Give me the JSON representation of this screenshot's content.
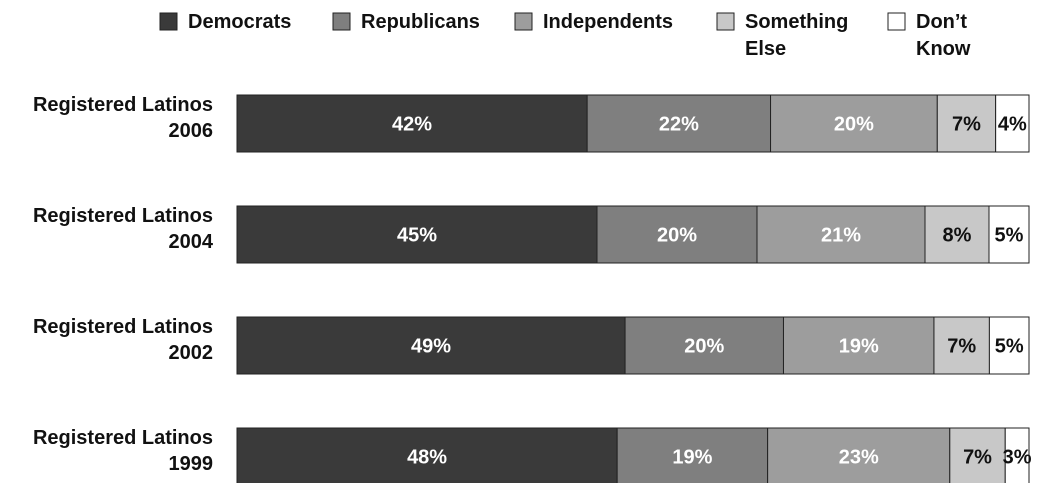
{
  "chart_data": {
    "type": "bar",
    "orientation": "horizontal",
    "stacked": true,
    "percent": true,
    "legend_position": "top",
    "grid": false,
    "categories": [
      [
        "Registered Latinos",
        "2006"
      ],
      [
        "Registered Latinos",
        "2004"
      ],
      [
        "Registered Latinos",
        "2002"
      ],
      [
        "Registered Latinos",
        "1999"
      ]
    ],
    "series": [
      {
        "name": "Democrats",
        "legend_lines": [
          "Democrats"
        ],
        "color": "#3a3a3a",
        "label_color": "#ffffff",
        "values": [
          42,
          45,
          49,
          48
        ]
      },
      {
        "name": "Republicans",
        "legend_lines": [
          "Republicans"
        ],
        "color": "#7f7f7f",
        "label_color": "#ffffff",
        "values": [
          22,
          20,
          20,
          19
        ]
      },
      {
        "name": "Independents",
        "legend_lines": [
          "Independents"
        ],
        "color": "#9d9d9d",
        "label_color": "#ffffff",
        "values": [
          20,
          21,
          19,
          23
        ]
      },
      {
        "name": "Something Else",
        "legend_lines": [
          "Something",
          "Else"
        ],
        "color": "#c8c8c8",
        "label_color": "#111111",
        "values": [
          7,
          8,
          7,
          7
        ]
      },
      {
        "name": "Don't Know",
        "legend_lines": [
          "Don’t",
          "Know"
        ],
        "color": "#ffffff",
        "label_color": "#111111",
        "values": [
          4,
          5,
          5,
          3
        ]
      }
    ],
    "value_suffix": "%"
  }
}
